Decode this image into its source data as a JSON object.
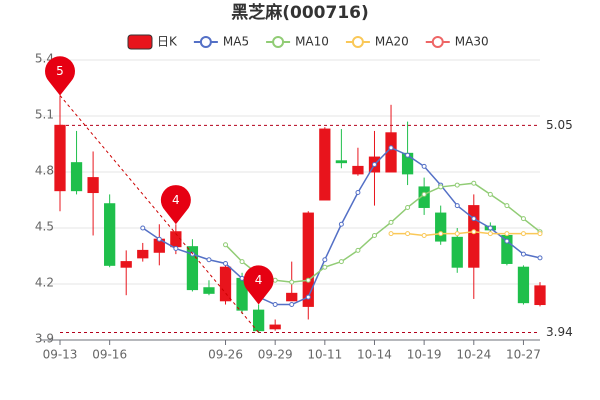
{
  "chart_data": {
    "type": "candlestick",
    "title": "黑芝麻(000716)",
    "categories": [
      "09-13",
      null,
      null,
      "09-16",
      null,
      null,
      null,
      null,
      null,
      null,
      "09-26",
      null,
      null,
      "09-29",
      null,
      null,
      "10-11",
      null,
      null,
      "10-14",
      null,
      null,
      "10-19",
      null,
      null,
      "10-24",
      null,
      null,
      "10-27",
      null
    ],
    "up_color": "#e8141c",
    "down_color": "#1fbf4b",
    "series": [
      {
        "name": "日K",
        "open": [
          4.7,
          4.85,
          4.69,
          4.63,
          4.29,
          4.34,
          4.37,
          4.4,
          4.4,
          4.18,
          4.11,
          4.23,
          4.06,
          3.96,
          4.11,
          4.08,
          4.65,
          4.86,
          4.79,
          4.8,
          4.8,
          4.9,
          4.72,
          4.58,
          4.45,
          4.29,
          4.51,
          4.46,
          4.29,
          4.09
        ],
        "high": [
          5.21,
          5.02,
          4.91,
          4.68,
          4.38,
          4.42,
          4.52,
          4.52,
          4.44,
          4.22,
          4.32,
          4.26,
          4.09,
          4.01,
          4.32,
          4.59,
          5.04,
          5.03,
          4.93,
          5.02,
          5.16,
          5.07,
          4.77,
          4.62,
          4.5,
          4.68,
          4.53,
          4.48,
          4.3,
          4.21
        ],
        "low": [
          4.59,
          4.68,
          4.46,
          4.29,
          4.14,
          4.32,
          4.3,
          4.36,
          4.16,
          4.14,
          4.09,
          4.04,
          3.94,
          3.95,
          4.11,
          4.01,
          4.65,
          4.82,
          4.78,
          4.62,
          4.8,
          4.73,
          4.57,
          4.41,
          4.26,
          4.12,
          4.48,
          4.3,
          4.09,
          4.08
        ],
        "close": [
          5.05,
          4.7,
          4.77,
          4.3,
          4.32,
          4.38,
          4.44,
          4.48,
          4.17,
          4.15,
          4.29,
          4.06,
          3.95,
          3.98,
          4.15,
          4.58,
          5.03,
          4.85,
          4.83,
          4.88,
          5.01,
          4.79,
          4.61,
          4.43,
          4.29,
          4.62,
          4.49,
          4.31,
          4.1,
          4.19
        ]
      },
      {
        "name": "MA5",
        "color": "#5470c6",
        "values": [
          null,
          null,
          null,
          null,
          null,
          4.5,
          4.44,
          4.39,
          4.36,
          4.33,
          4.31,
          4.23,
          4.13,
          4.09,
          4.09,
          4.13,
          4.33,
          4.52,
          4.69,
          4.84,
          4.93,
          4.89,
          4.83,
          4.73,
          4.62,
          4.55,
          4.5,
          4.43,
          4.36,
          4.34
        ]
      },
      {
        "name": "MA10",
        "color": "#91cc75",
        "values": [
          null,
          null,
          null,
          null,
          null,
          null,
          null,
          null,
          null,
          null,
          4.41,
          4.32,
          4.25,
          4.22,
          4.21,
          4.22,
          4.29,
          4.32,
          4.38,
          4.46,
          4.53,
          4.61,
          4.68,
          4.72,
          4.73,
          4.74,
          4.68,
          4.62,
          4.55,
          4.48
        ]
      },
      {
        "name": "MA20",
        "color": "#fac858",
        "values": [
          null,
          null,
          null,
          null,
          null,
          null,
          null,
          null,
          null,
          null,
          null,
          null,
          null,
          null,
          null,
          null,
          null,
          null,
          null,
          null,
          4.47,
          4.47,
          4.46,
          4.47,
          4.47,
          4.48,
          4.47,
          4.47,
          4.47,
          4.47
        ]
      },
      {
        "name": "MA30",
        "color": "#ee6666",
        "values": [
          null,
          null,
          null,
          null,
          null,
          null,
          null,
          null,
          null,
          null,
          null,
          null,
          null,
          null,
          null,
          null,
          null,
          null,
          null,
          null,
          null,
          null,
          null,
          null,
          null,
          null,
          null,
          null,
          null,
          null
        ]
      }
    ],
    "ylim": [
      3.9,
      5.4
    ],
    "yticks": [
      3.9,
      4.2,
      4.5,
      4.8,
      5.1,
      5.4
    ],
    "grid": true,
    "reference_lines": [
      5.05,
      3.94
    ],
    "annotations": [
      {
        "text": "5",
        "point": 0
      },
      {
        "text": "4",
        "point": 7
      },
      {
        "text": "4",
        "point": 12
      }
    ]
  }
}
